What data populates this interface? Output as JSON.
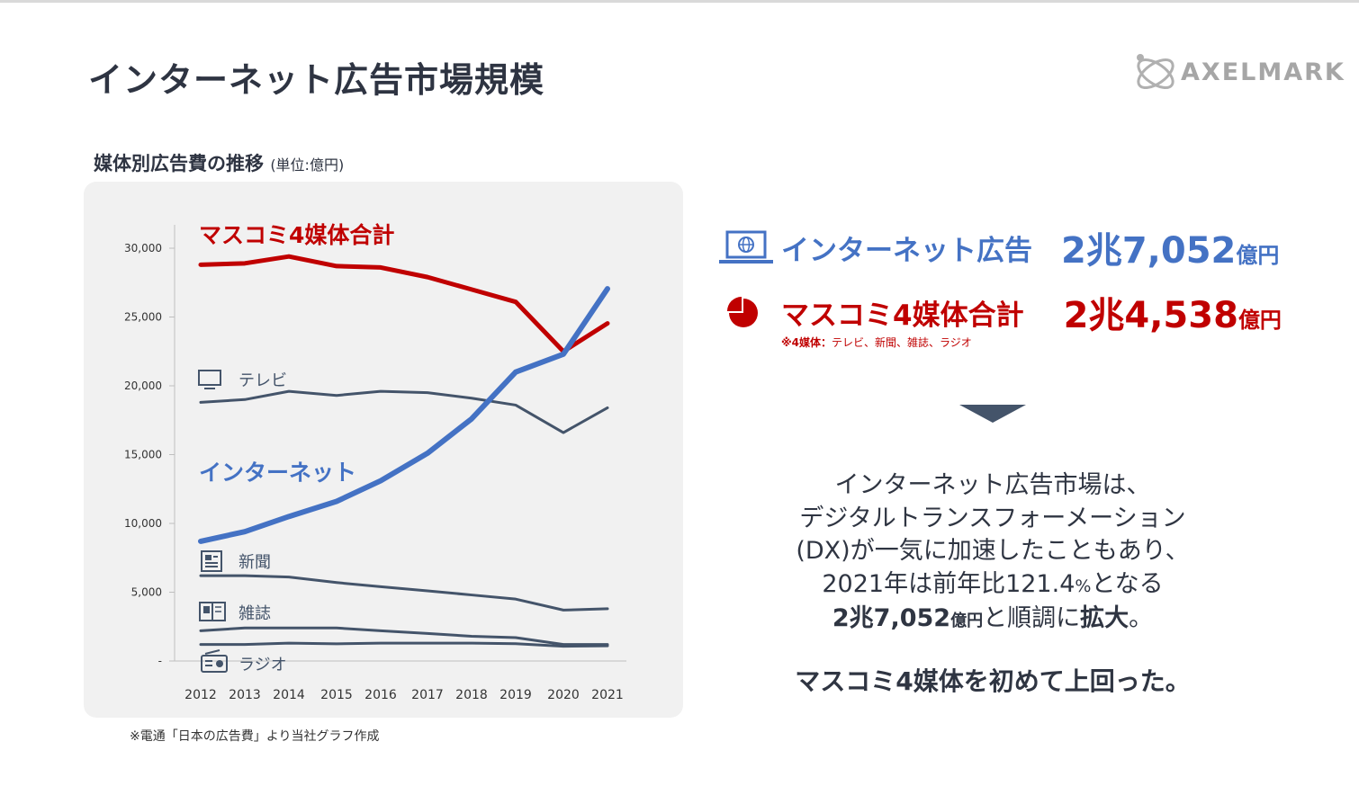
{
  "title": "インターネット広告市場規模",
  "logo": {
    "text": "AXELMARK",
    "icon": "axelmark-logo-icon"
  },
  "subtitle": {
    "main": "媒体別広告費の推移",
    "unit": "(単位:億円)"
  },
  "source_note": "※電通「日本の広告費」より当社グラフ作成",
  "chart_data": {
    "type": "line",
    "title": "媒体別広告費の推移",
    "unit": "億円",
    "xlabel": "",
    "ylabel": "",
    "ylim": [
      0,
      30000
    ],
    "grid": false,
    "categories": [
      "2012",
      "2013",
      "2014",
      "2015",
      "2016",
      "2017",
      "2018",
      "2019",
      "2020",
      "2021"
    ],
    "y_ticks": [
      "-",
      "5,000",
      "10,000",
      "15,000",
      "20,000",
      "25,000",
      "30,000"
    ],
    "y_tick_values": [
      0,
      5000,
      10000,
      15000,
      20000,
      25000,
      30000
    ],
    "series": [
      {
        "name": "マスコミ4媒体合計",
        "color": "#c00000",
        "values": [
          28800,
          28900,
          29400,
          28700,
          28600,
          27900,
          27000,
          26100,
          22500,
          24538
        ]
      },
      {
        "name": "テレビ",
        "color": "#44546a",
        "icon": "tv-icon",
        "values": [
          18800,
          19000,
          19600,
          19300,
          19600,
          19500,
          19100,
          18600,
          16600,
          18400
        ]
      },
      {
        "name": "インターネット",
        "color": "#4472c4",
        "values": [
          8700,
          9400,
          10500,
          11600,
          13100,
          15100,
          17600,
          21000,
          22300,
          27052
        ]
      },
      {
        "name": "新聞",
        "color": "#44546a",
        "icon": "newspaper-icon",
        "values": [
          6200,
          6200,
          6100,
          5700,
          5400,
          5100,
          4800,
          4500,
          3700,
          3800
        ]
      },
      {
        "name": "雑誌",
        "color": "#44546a",
        "icon": "magazine-icon",
        "values": [
          2200,
          2400,
          2400,
          2400,
          2200,
          2000,
          1800,
          1700,
          1200,
          1200
        ]
      },
      {
        "name": "ラジオ",
        "color": "#44546a",
        "icon": "radio-icon",
        "values": [
          1200,
          1200,
          1300,
          1250,
          1300,
          1300,
          1300,
          1260,
          1070,
          1100
        ]
      }
    ]
  },
  "stats": [
    {
      "icon": "laptop-globe-icon",
      "label": "インターネット広告",
      "value_num": "2兆7,052",
      "value_unit": "億円",
      "color": "#4472c4"
    },
    {
      "icon": "pie-chart-icon",
      "label": "マスコミ4媒体合計",
      "value_num": "2兆4,538",
      "value_unit": "億円",
      "color": "#c00000"
    }
  ],
  "stats_note": {
    "bold": "※4媒体：",
    "text": "テレビ、新聞、雑誌、ラジオ"
  },
  "summary": {
    "line1": "インターネット広告市場は、",
    "line2": "デジタルトランスフォーメーション",
    "line3": "(DX)が一気に加速したこともあり、",
    "line4_pre": "2021年は前年比121.4",
    "line4_pct": "%",
    "line4_post": "となる",
    "line5_value": "2兆7,052",
    "line5_unit": "億円",
    "line5_mid": "と順調に",
    "line5_bold": "拡大",
    "line5_end": "。",
    "conclusion": "マスコミ4媒体を初めて上回った。"
  }
}
